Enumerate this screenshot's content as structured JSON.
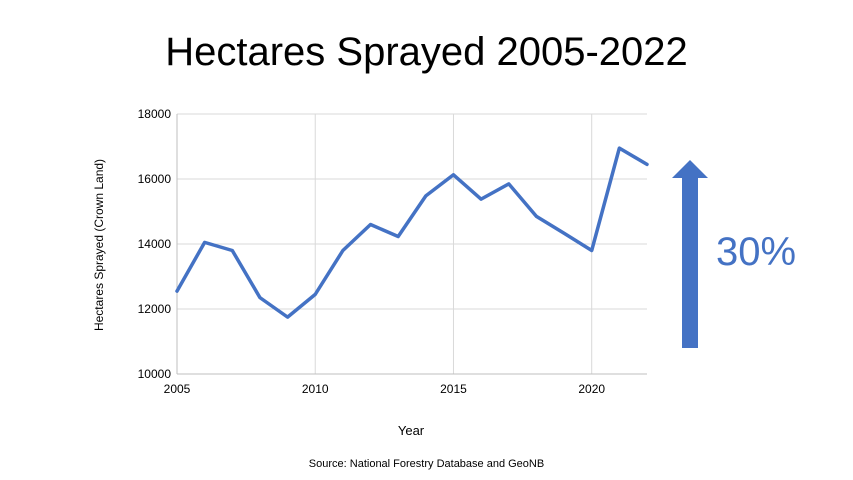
{
  "title": "Hectares Sprayed 2005-2022",
  "source": "Source: National Forestry Database and GeoNB",
  "annotation": {
    "label": "30%",
    "color": "#4472C4",
    "icon": "up-arrow"
  },
  "chart_data": {
    "type": "line",
    "xlabel": "Year",
    "ylabel": "Hectares Sprayed (Crown Land)",
    "xlim": [
      2005,
      2022
    ],
    "ylim": [
      10000,
      18000
    ],
    "x_ticks": [
      2005,
      2010,
      2015,
      2020
    ],
    "y_ticks": [
      10000,
      12000,
      14000,
      16000,
      18000
    ],
    "x_tick_labels": [
      "2005",
      "2010",
      "2015",
      "2020"
    ],
    "y_tick_labels": [
      "10000",
      "12000",
      "14000",
      "16000",
      "18000"
    ],
    "grid": true,
    "line_color": "#4472C4",
    "series": [
      {
        "x": [
          2005,
          2006,
          2007,
          2008,
          2009,
          2010,
          2011,
          2012,
          2013,
          2014,
          2015,
          2016,
          2017,
          2018,
          2019,
          2020,
          2021,
          2022
        ],
        "values": [
          12550,
          14050,
          13800,
          12350,
          11750,
          12450,
          13800,
          14600,
          14230,
          15480,
          16130,
          15380,
          15850,
          14850,
          14330,
          13800,
          16950,
          16450
        ]
      }
    ]
  }
}
